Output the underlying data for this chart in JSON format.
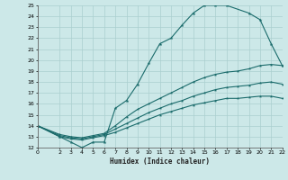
{
  "xlabel": "Humidex (Indice chaleur)",
  "bg_color": "#cce8e8",
  "grid_color": "#aacfcf",
  "line_color": "#1a6b6b",
  "xlim": [
    0,
    22
  ],
  "ylim": [
    12,
    25
  ],
  "xticks": [
    0,
    2,
    3,
    4,
    5,
    6,
    7,
    8,
    9,
    10,
    11,
    12,
    13,
    14,
    15,
    16,
    17,
    18,
    19,
    20,
    21,
    22
  ],
  "yticks": [
    12,
    13,
    14,
    15,
    16,
    17,
    18,
    19,
    20,
    21,
    22,
    23,
    24,
    25
  ],
  "line1_x": [
    0,
    2,
    3,
    4,
    5,
    6,
    7,
    8,
    9,
    10,
    11,
    12,
    13,
    14,
    15,
    16,
    17,
    19,
    20,
    21,
    22
  ],
  "line1_y": [
    14,
    13,
    12.5,
    12,
    12.5,
    12.5,
    15.6,
    16.3,
    17.8,
    19.7,
    21.5,
    22.0,
    23.2,
    24.3,
    25.0,
    25.0,
    25.0,
    24.3,
    23.7,
    21.5,
    19.5
  ],
  "line2_x": [
    0,
    2,
    3,
    4,
    5,
    6,
    7,
    8,
    9,
    10,
    11,
    12,
    13,
    14,
    15,
    16,
    17,
    18,
    19,
    20,
    21,
    22
  ],
  "line2_y": [
    14,
    13.2,
    13.0,
    12.9,
    13.1,
    13.3,
    14.0,
    14.8,
    15.5,
    16.0,
    16.5,
    17.0,
    17.5,
    18.0,
    18.4,
    18.7,
    18.9,
    19.0,
    19.2,
    19.5,
    19.6,
    19.5
  ],
  "line3_x": [
    0,
    2,
    3,
    4,
    5,
    6,
    7,
    8,
    9,
    10,
    11,
    12,
    13,
    14,
    15,
    16,
    17,
    18,
    19,
    20,
    21,
    22
  ],
  "line3_y": [
    14,
    13.1,
    12.9,
    12.8,
    13.0,
    13.2,
    13.7,
    14.2,
    14.7,
    15.2,
    15.6,
    16.0,
    16.3,
    16.7,
    17.0,
    17.3,
    17.5,
    17.6,
    17.7,
    17.9,
    18.0,
    17.8
  ],
  "line4_x": [
    0,
    2,
    3,
    4,
    5,
    6,
    7,
    8,
    9,
    10,
    11,
    12,
    13,
    14,
    15,
    16,
    17,
    18,
    19,
    20,
    21,
    22
  ],
  "line4_y": [
    14,
    13.0,
    12.8,
    12.7,
    12.9,
    13.1,
    13.4,
    13.8,
    14.2,
    14.6,
    15.0,
    15.3,
    15.6,
    15.9,
    16.1,
    16.3,
    16.5,
    16.5,
    16.6,
    16.7,
    16.7,
    16.5
  ]
}
